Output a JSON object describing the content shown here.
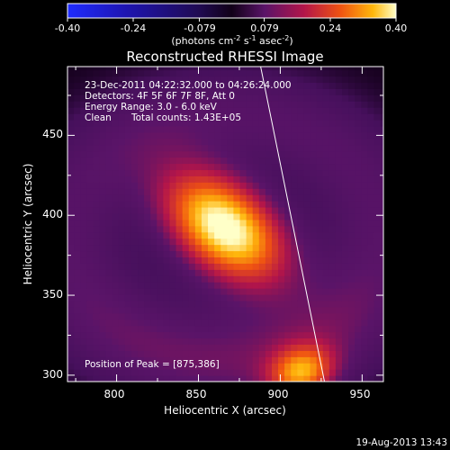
{
  "chart_data": {
    "type": "heatmap",
    "title": "Reconstructed RHESSI Image",
    "xlabel": "Heliocentric X (arcsec)",
    "ylabel": "Heliocentric Y (arcsec)",
    "xlim": [
      770,
      963
    ],
    "ylim": [
      296,
      493
    ],
    "x_ticks": [
      "800",
      "850",
      "900",
      "950"
    ],
    "x_tick_values": [
      800,
      850,
      900,
      950
    ],
    "y_ticks": [
      "300",
      "350",
      "400",
      "450"
    ],
    "y_tick_values": [
      300,
      350,
      400,
      450
    ],
    "colorbar": {
      "range": [
        -0.4,
        0.4
      ],
      "ticks": [
        "-0.40",
        "-0.24",
        "-0.079",
        "0.079",
        "0.24",
        "0.40"
      ],
      "tick_values": [
        -0.4,
        -0.24,
        -0.079,
        0.079,
        0.24,
        0.4
      ],
      "unit_main": "(photons cm",
      "unit_exp1": "-2",
      "unit_mid": " s",
      "unit_exp2": "-1",
      "unit_end": " asec",
      "unit_exp3": "-2",
      "unit_close": ")"
    },
    "annotations": {
      "time_range": "23-Dec-2011 04:22:32.000 to 04:26:24.000",
      "detectors": "Detectors: 4F 5F 6F 7F 8F, Att 0",
      "energy": "Energy Range: 3.0 - 6.0 keV",
      "clean": "Clean",
      "counts": "Total counts: 1.43E+05",
      "peak": "Position of Peak = [875,386]"
    },
    "peak": {
      "x": 875,
      "y": 386
    },
    "sources": [
      {
        "x": 866,
        "y": 393,
        "sx": 19,
        "sy": 30,
        "angle_deg": 50,
        "amp": 0.42
      },
      {
        "x": 913,
        "y": 302,
        "sx": 14,
        "sy": 11,
        "angle_deg": 20,
        "amp": 0.25
      }
    ],
    "background_ring": {
      "x": 866,
      "y": 385,
      "rx": 95,
      "ry": 78,
      "width": 22,
      "amp": 0.09
    },
    "limb_line": [
      [
        888,
        493
      ],
      [
        927,
        296
      ]
    ]
  },
  "footer": {
    "timestamp": "19-Aug-2013 13:43"
  }
}
